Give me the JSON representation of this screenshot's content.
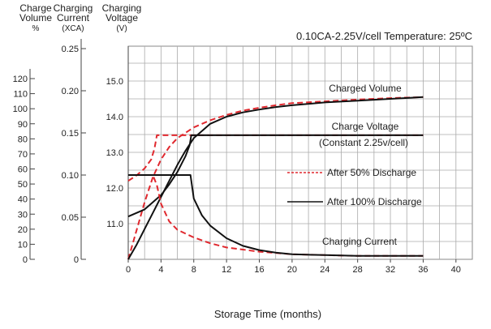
{
  "chart_data": {
    "type": "line",
    "title": "0.10CA-2.25V/cell  Temperature: 25ºC",
    "xlabel": "Storage Time (months)",
    "x_ticks": [
      0,
      4,
      8,
      12,
      16,
      20,
      24,
      28,
      32,
      36,
      40
    ],
    "xlim": [
      0,
      42
    ],
    "axes": [
      {
        "id": "volume",
        "label_lines": [
          "Charge",
          "Volume",
          "%"
        ],
        "ticks": [
          "0",
          "10",
          "20",
          "30",
          "40",
          "50",
          "60",
          "70",
          "80",
          "90",
          "100",
          "110",
          "120"
        ],
        "range": [
          0,
          120
        ]
      },
      {
        "id": "current",
        "label_lines": [
          "Charging",
          "Current",
          "(XCA)"
        ],
        "ticks": [
          "0",
          "0.05",
          "0.10",
          "0.15",
          "0.20",
          "0.25"
        ],
        "range": [
          0,
          0.25
        ]
      },
      {
        "id": "voltage",
        "label_lines": [
          "Charging",
          "Voltage",
          "(V)"
        ],
        "ticks": [
          "11.0",
          "12.0",
          "13.0",
          "14.0",
          "15.0"
        ],
        "range": [
          10.0,
          15.0
        ]
      }
    ],
    "grid": true,
    "annotations": [
      "Charged Volume",
      "Charge Voltage",
      "(Constant 2.25v/cell)",
      "Charging Current"
    ],
    "legend": [
      {
        "name": "After 50% Discharge",
        "style": "dashed",
        "color": "#e0282e"
      },
      {
        "name": "After 100% Discharge",
        "style": "solid",
        "color": "#111111"
      }
    ],
    "series": [
      {
        "name": "Charged Volume",
        "condition": "After 50% Discharge",
        "axis": "voltage",
        "style": "dashed",
        "color": "#e0282e",
        "x": [
          0,
          1,
          2,
          3,
          4,
          5,
          6,
          7,
          8,
          10,
          12,
          14,
          16,
          18,
          20,
          24,
          28,
          32,
          36
        ],
        "y": [
          10.0,
          10.8,
          11.6,
          12.3,
          12.8,
          13.15,
          13.4,
          13.55,
          13.7,
          13.9,
          14.05,
          14.17,
          14.25,
          14.32,
          14.38,
          14.43,
          14.48,
          14.52,
          14.55
        ]
      },
      {
        "name": "Charged Volume",
        "condition": "After 100% Discharge",
        "axis": "voltage",
        "style": "solid",
        "color": "#111111",
        "x": [
          0,
          1,
          2,
          3,
          4,
          5,
          6,
          7,
          8,
          10,
          12,
          14,
          16,
          18,
          20,
          24,
          28,
          32,
          36
        ],
        "y": [
          10.0,
          10.4,
          10.85,
          11.3,
          11.75,
          12.2,
          12.65,
          13.05,
          13.4,
          13.8,
          14.0,
          14.12,
          14.2,
          14.27,
          14.32,
          14.4,
          14.45,
          14.5,
          14.55
        ]
      },
      {
        "name": "Charge Voltage",
        "condition": "After 50% Discharge",
        "axis": "voltage",
        "style": "dashed",
        "color": "#e0282e",
        "x": [
          0,
          1,
          2,
          2.8,
          3.2,
          3.5,
          36
        ],
        "y": [
          12.2,
          12.35,
          12.55,
          12.8,
          13.1,
          13.48,
          13.48
        ]
      },
      {
        "name": "Charge Voltage",
        "condition": "After 100% Discharge",
        "axis": "voltage",
        "style": "solid",
        "color": "#111111",
        "x": [
          0,
          2,
          4,
          5,
          6,
          7,
          7.5,
          7.7,
          36
        ],
        "y": [
          11.2,
          11.4,
          11.8,
          12.1,
          12.45,
          12.9,
          13.2,
          13.48,
          13.48
        ]
      },
      {
        "name": "Charging Current",
        "condition": "After 50% Discharge",
        "axis": "current",
        "style": "dashed",
        "color": "#e0282e",
        "x": [
          0,
          1,
          2,
          3,
          3.5,
          4,
          5,
          6,
          8,
          10,
          12,
          16,
          20,
          24,
          28,
          36
        ],
        "y": [
          0.1,
          0.1,
          0.1,
          0.1,
          0.088,
          0.066,
          0.045,
          0.035,
          0.026,
          0.019,
          0.014,
          0.009,
          0.006,
          0.005,
          0.004,
          0.004
        ]
      },
      {
        "name": "Charging Current",
        "condition": "After 100% Discharge",
        "axis": "current",
        "style": "solid",
        "color": "#111111",
        "x": [
          0,
          2,
          4,
          6,
          7.6,
          8,
          9,
          10,
          12,
          14,
          16,
          18,
          20,
          24,
          28,
          36
        ],
        "y": [
          0.1,
          0.1,
          0.1,
          0.1,
          0.1,
          0.072,
          0.052,
          0.04,
          0.025,
          0.016,
          0.011,
          0.008,
          0.006,
          0.005,
          0.004,
          0.004
        ]
      }
    ]
  }
}
